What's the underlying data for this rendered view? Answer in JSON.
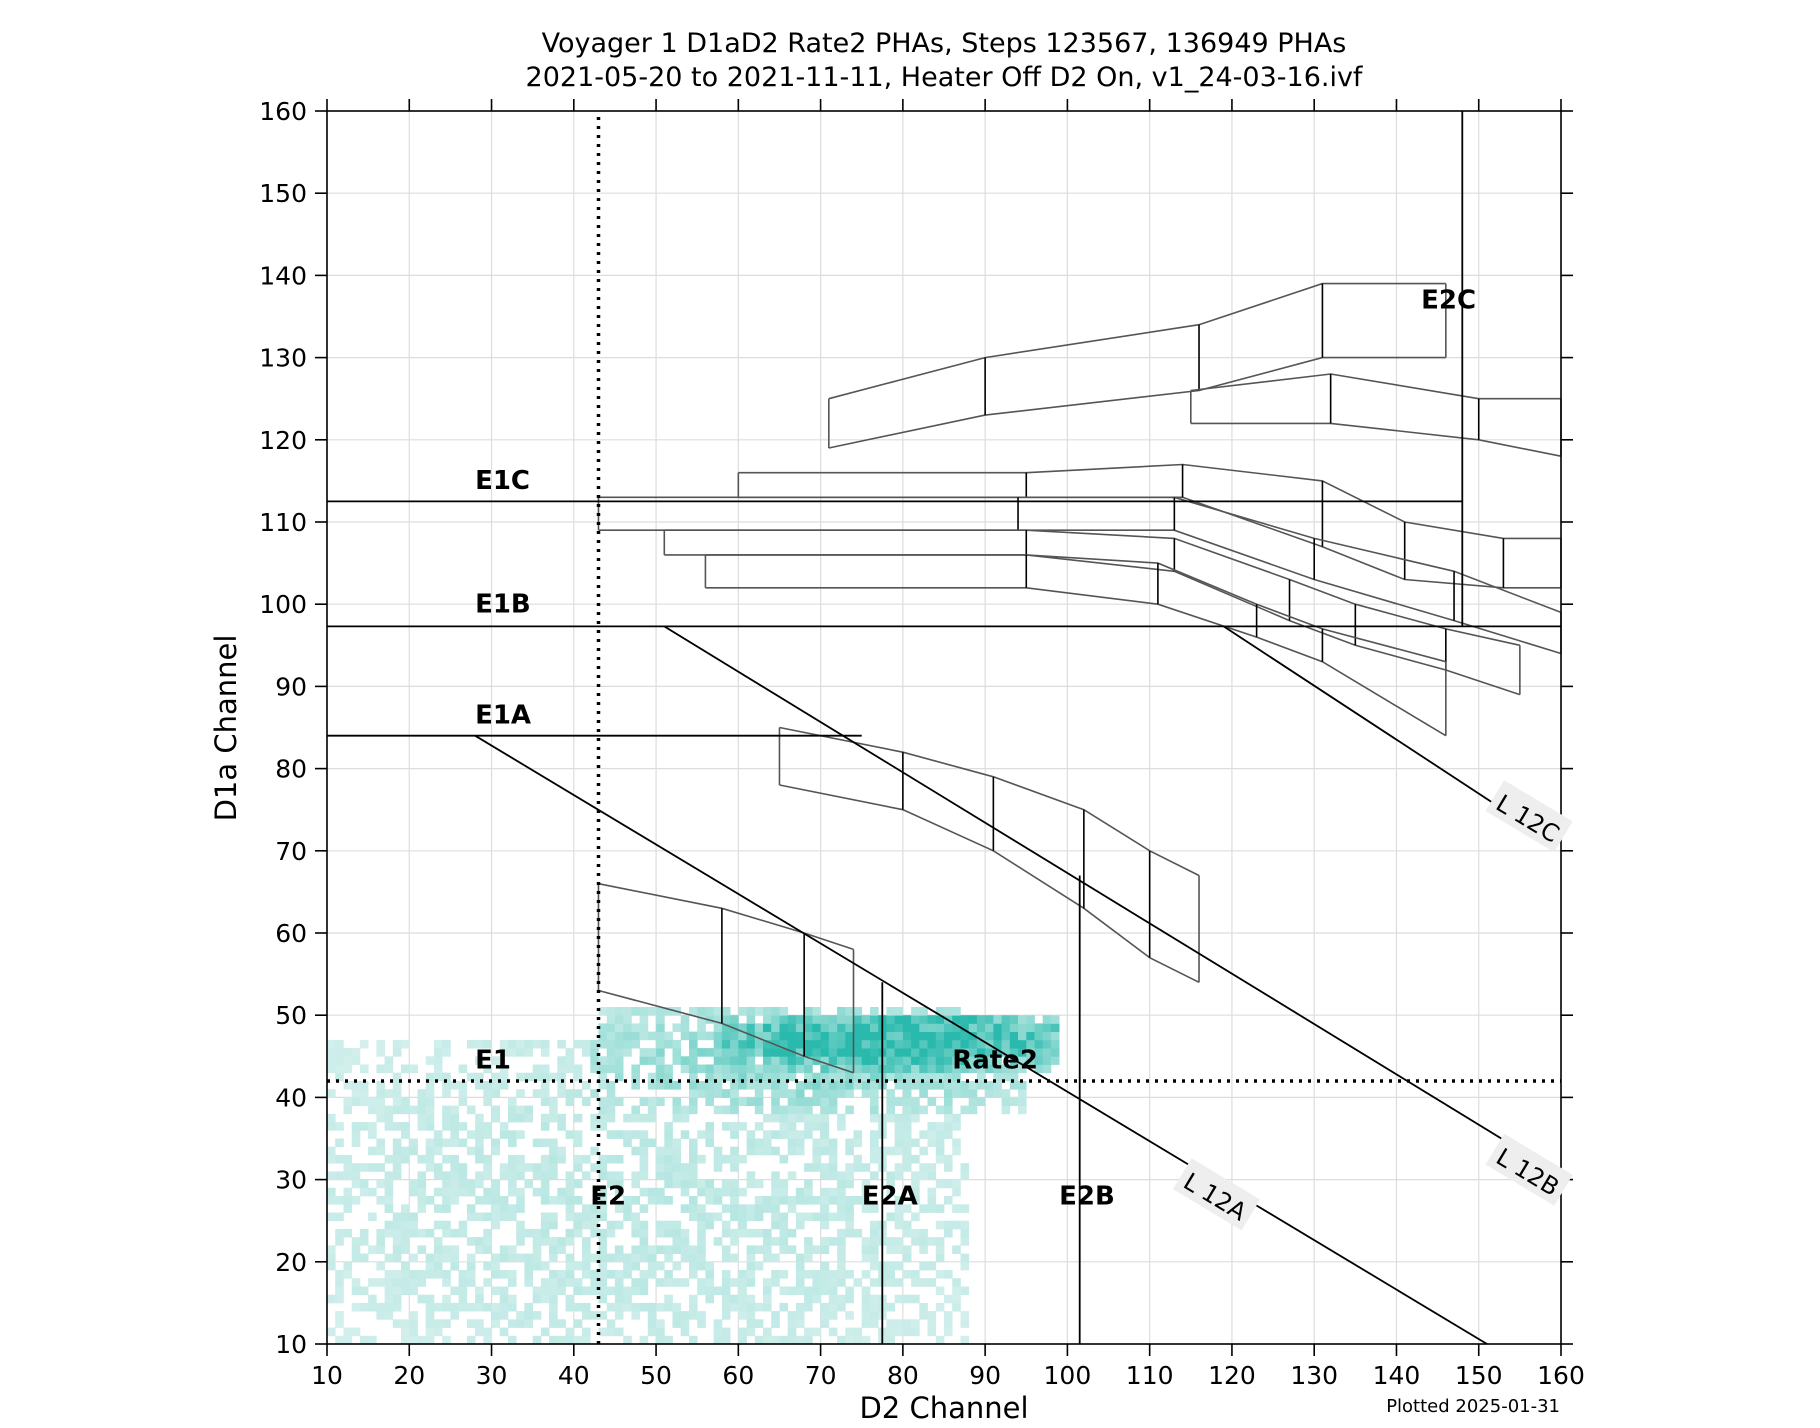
{
  "chart_data": {
    "type": "heatmap",
    "title": "Voyager 1 D1aD2 Rate2 PHAs, Steps 123567, 136949 PHAs",
    "subtitle": "2021-05-20 to 2021-11-11, Heater Off D2 On, v1_24-03-16.ivf",
    "xlabel": "D2 Channel",
    "ylabel": "D1a Channel",
    "xlim": [
      10,
      160
    ],
    "ylim": [
      10,
      160
    ],
    "xticks": [
      10,
      20,
      30,
      40,
      50,
      60,
      70,
      80,
      90,
      100,
      110,
      120,
      130,
      140,
      150,
      160
    ],
    "yticks": [
      10,
      20,
      30,
      40,
      50,
      60,
      70,
      80,
      90,
      100,
      110,
      120,
      130,
      140,
      150,
      160
    ],
    "grid": true,
    "footnote": "Plotted 2025-01-31",
    "colors": {
      "density_low": "#dff3f1",
      "density_mid": "#9edfd8",
      "density_high": "#2ab9ad",
      "boundary": "#000000",
      "box": "#555555",
      "grid": "#dddddd"
    },
    "density_regions": [
      {
        "name": "background",
        "x": [
          10,
          88
        ],
        "y": [
          10,
          47
        ],
        "level": 0.25
      },
      {
        "name": "mid-band",
        "x": [
          42,
          95
        ],
        "y": [
          38,
          51
        ],
        "level": 0.55
      },
      {
        "name": "core",
        "x": [
          58,
          99
        ],
        "y": [
          43,
          50
        ],
        "level": 1.0
      }
    ],
    "dotted_lines": [
      {
        "name": "E1",
        "points": [
          [
            10,
            42
          ],
          [
            160,
            42
          ]
        ]
      },
      {
        "name": "E2",
        "points": [
          [
            43,
            10
          ],
          [
            43,
            160
          ]
        ]
      }
    ],
    "boundary_lines": [
      {
        "name": "E1A",
        "points": [
          [
            10,
            84
          ],
          [
            75,
            84
          ]
        ]
      },
      {
        "name": "E1B",
        "points": [
          [
            10,
            97.3
          ],
          [
            160,
            97.3
          ]
        ]
      },
      {
        "name": "E1C",
        "points": [
          [
            10,
            112.5
          ],
          [
            148,
            112.5
          ]
        ]
      },
      {
        "name": "E2A",
        "points": [
          [
            77.5,
            10
          ],
          [
            77.5,
            54
          ]
        ]
      },
      {
        "name": "E2B",
        "points": [
          [
            101.5,
            10
          ],
          [
            101.5,
            67
          ]
        ]
      },
      {
        "name": "E2C",
        "points": [
          [
            148,
            97.3
          ],
          [
            148,
            160
          ]
        ]
      },
      {
        "name": "L 12A",
        "points": [
          [
            28,
            84
          ],
          [
            151,
            10
          ]
        ]
      },
      {
        "name": "L 12B",
        "points": [
          [
            51,
            97.3
          ],
          [
            156,
            33
          ]
        ]
      },
      {
        "name": "L 12C",
        "points": [
          [
            119,
            97.3
          ],
          [
            153,
            75
          ]
        ]
      }
    ],
    "track_boxes": [
      {
        "top": [
          [
            43,
            66
          ],
          [
            58,
            63
          ],
          [
            68,
            60
          ],
          [
            74,
            58
          ]
        ],
        "bottom": [
          [
            43,
            53
          ],
          [
            58,
            49
          ],
          [
            68,
            45
          ],
          [
            74,
            43
          ]
        ]
      },
      {
        "top": [
          [
            65,
            85
          ],
          [
            80,
            82
          ],
          [
            91,
            79
          ],
          [
            102,
            75
          ],
          [
            110,
            70
          ],
          [
            116,
            67
          ]
        ],
        "bottom": [
          [
            65,
            78
          ],
          [
            80,
            75
          ],
          [
            91,
            70
          ],
          [
            102,
            63
          ],
          [
            110,
            57
          ],
          [
            116,
            54
          ]
        ]
      },
      {
        "top": [
          [
            71,
            125
          ],
          [
            90,
            130
          ],
          [
            116,
            134
          ],
          [
            131,
            139
          ],
          [
            146,
            139
          ]
        ],
        "bottom": [
          [
            71,
            119
          ],
          [
            90,
            123
          ],
          [
            116,
            126
          ],
          [
            131,
            130
          ],
          [
            146,
            130
          ]
        ]
      },
      {
        "top": [
          [
            115,
            126
          ],
          [
            132,
            128
          ],
          [
            150,
            125
          ],
          [
            160,
            125
          ]
        ],
        "bottom": [
          [
            115,
            122
          ],
          [
            132,
            122
          ],
          [
            150,
            120
          ],
          [
            160,
            118
          ]
        ]
      },
      {
        "top": [
          [
            60,
            116
          ],
          [
            95,
            116
          ],
          [
            114,
            117
          ],
          [
            131,
            115
          ],
          [
            141,
            110
          ],
          [
            153,
            108
          ],
          [
            160,
            108
          ]
        ],
        "bottom": [
          [
            60,
            113
          ],
          [
            95,
            113
          ],
          [
            114,
            113
          ],
          [
            131,
            107
          ],
          [
            141,
            103
          ],
          [
            153,
            102
          ],
          [
            160,
            102
          ]
        ]
      },
      {
        "top": [
          [
            43,
            113
          ],
          [
            94,
            113
          ],
          [
            113,
            113
          ],
          [
            130,
            108
          ],
          [
            147,
            104
          ],
          [
            160,
            99
          ]
        ],
        "bottom": [
          [
            43,
            109
          ],
          [
            94,
            109
          ],
          [
            113,
            109
          ],
          [
            130,
            103
          ],
          [
            147,
            98
          ],
          [
            160,
            94
          ]
        ]
      },
      {
        "top": [
          [
            51,
            109
          ],
          [
            95,
            109
          ],
          [
            113,
            108
          ],
          [
            127,
            103
          ],
          [
            135,
            100
          ],
          [
            146,
            97
          ],
          [
            155,
            95
          ]
        ],
        "bottom": [
          [
            51,
            106
          ],
          [
            95,
            106
          ],
          [
            113,
            104
          ],
          [
            127,
            98
          ],
          [
            135,
            95
          ],
          [
            146,
            92
          ],
          [
            155,
            89
          ]
        ]
      },
      {
        "top": [
          [
            56,
            106
          ],
          [
            95,
            106
          ],
          [
            111,
            105
          ],
          [
            123,
            100
          ],
          [
            131,
            97
          ],
          [
            146,
            93
          ]
        ],
        "bottom": [
          [
            56,
            102
          ],
          [
            95,
            102
          ],
          [
            111,
            100
          ],
          [
            123,
            96
          ],
          [
            131,
            93
          ],
          [
            146,
            84
          ]
        ]
      }
    ],
    "annotations": [
      {
        "text": "E1",
        "x": 28,
        "y": 43.5
      },
      {
        "text": "E1A",
        "x": 28,
        "y": 85.5
      },
      {
        "text": "E1B",
        "x": 28,
        "y": 99
      },
      {
        "text": "E1C",
        "x": 28,
        "y": 114
      },
      {
        "text": "E2",
        "x": 42,
        "y": 27
      },
      {
        "text": "E2A",
        "x": 75,
        "y": 27
      },
      {
        "text": "E2B",
        "x": 99,
        "y": 27
      },
      {
        "text": "E2C",
        "x": 143,
        "y": 136
      },
      {
        "text": "Rate2",
        "x": 86,
        "y": 43.5
      }
    ],
    "rotated_labels": [
      {
        "text": "L 12A",
        "x": 118,
        "y": 28,
        "angle": 31
      },
      {
        "text": "L 12B",
        "x": 156,
        "y": 31,
        "angle": 31
      },
      {
        "text": "L 12C",
        "x": 156,
        "y": 74,
        "angle": 31
      }
    ]
  }
}
